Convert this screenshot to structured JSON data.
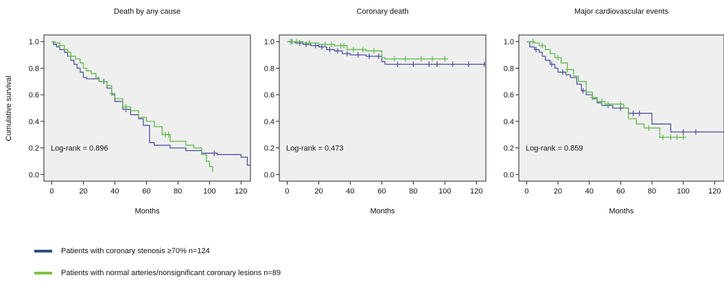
{
  "y_axis_label": "Cumulative survival",
  "colors": {
    "stenosis": "#4a4fa0",
    "normal": "#5cb946",
    "plot_bg": "#efefef"
  },
  "legend": [
    {
      "label": "Patients with coronary stenosis ≥70% n=124",
      "color": "#2b4f7e"
    },
    {
      "label": "Patients with normal arteries/nonsignificant coronary lesions n=89",
      "color": "#7cc242"
    }
  ],
  "chart_data": [
    {
      "type": "line",
      "step": true,
      "title": "Death by any cause",
      "xlabel": "Months",
      "ylabel": "Cumulative survival",
      "xlim": [
        -5,
        126
      ],
      "ylim": [
        -0.05,
        1.05
      ],
      "xticks": [
        0,
        20,
        40,
        60,
        80,
        100,
        120
      ],
      "yticks": [
        "0.0",
        "0.2",
        "0.4",
        "0.6",
        "0.8",
        "1.0"
      ],
      "annotation": "Log-rank = 0.896",
      "series": [
        {
          "color": "#4a4fa0",
          "x": [
            0,
            1,
            3,
            5,
            8,
            10,
            12,
            14,
            16,
            18,
            20,
            22,
            25,
            30,
            35,
            38,
            40,
            45,
            50,
            55,
            58,
            62,
            65,
            75,
            85,
            95,
            105,
            120,
            124,
            126
          ],
          "y": [
            1.0,
            0.98,
            0.96,
            0.94,
            0.92,
            0.89,
            0.86,
            0.83,
            0.8,
            0.77,
            0.73,
            0.72,
            0.72,
            0.7,
            0.65,
            0.6,
            0.55,
            0.49,
            0.45,
            0.42,
            0.37,
            0.24,
            0.22,
            0.2,
            0.18,
            0.16,
            0.15,
            0.13,
            0.07,
            0.07
          ],
          "censor_x": [
            33,
            47,
            103
          ]
        },
        {
          "color": "#5cb946",
          "x": [
            0,
            2,
            5,
            8,
            10,
            12,
            15,
            18,
            20,
            22,
            25,
            28,
            30,
            35,
            38,
            40,
            45,
            50,
            55,
            60,
            65,
            70,
            75,
            85,
            90,
            95,
            98,
            100,
            102
          ],
          "y": [
            1.0,
            0.99,
            0.97,
            0.94,
            0.92,
            0.89,
            0.87,
            0.84,
            0.8,
            0.78,
            0.76,
            0.73,
            0.7,
            0.67,
            0.61,
            0.57,
            0.51,
            0.48,
            0.43,
            0.4,
            0.36,
            0.3,
            0.25,
            0.22,
            0.2,
            0.15,
            0.1,
            0.06,
            0.02
          ],
          "censor_x": [
            5,
            12,
            38,
            47,
            72,
            74
          ]
        }
      ]
    },
    {
      "type": "line",
      "step": true,
      "title": "Coronary death",
      "xlabel": "Months",
      "ylabel": "",
      "xlim": [
        -5,
        126
      ],
      "ylim": [
        -0.05,
        1.05
      ],
      "xticks": [
        0,
        20,
        40,
        60,
        80,
        100,
        120
      ],
      "yticks": [
        "0.0",
        "0.2",
        "0.4",
        "0.6",
        "0.8",
        "1.0"
      ],
      "annotation": "Log-rank = 0.473",
      "series": [
        {
          "color": "#4a4fa0",
          "x": [
            0,
            5,
            10,
            15,
            20,
            25,
            30,
            35,
            40,
            50,
            60,
            62,
            126
          ],
          "y": [
            1.0,
            0.99,
            0.98,
            0.97,
            0.96,
            0.94,
            0.93,
            0.91,
            0.9,
            0.89,
            0.85,
            0.83,
            0.83
          ],
          "censor_x": [
            3,
            8,
            12,
            18,
            22,
            27,
            32,
            38,
            45,
            52,
            58,
            70,
            80,
            90,
            95,
            105,
            115,
            125
          ]
        },
        {
          "color": "#5cb946",
          "x": [
            0,
            10,
            20,
            30,
            38,
            50,
            60,
            62,
            102
          ],
          "y": [
            1.0,
            0.99,
            0.98,
            0.97,
            0.94,
            0.93,
            0.88,
            0.87,
            0.87
          ],
          "censor_x": [
            2,
            6,
            14,
            24,
            28,
            34,
            36,
            42,
            48,
            55,
            68,
            75,
            85,
            92,
            100
          ]
        }
      ]
    },
    {
      "type": "line",
      "step": true,
      "title": "Major cardiovascular events",
      "xlabel": "Months",
      "ylabel": "",
      "xlim": [
        -5,
        126
      ],
      "ylim": [
        -0.05,
        1.05
      ],
      "xticks": [
        0,
        20,
        40,
        60,
        80,
        100,
        120
      ],
      "yticks": [
        "0.0",
        "0.2",
        "0.4",
        "0.6",
        "0.8",
        "1.0"
      ],
      "annotation": "Log-rank = 0.859",
      "series": [
        {
          "color": "#4a4fa0",
          "x": [
            0,
            2,
            5,
            8,
            10,
            12,
            15,
            18,
            20,
            25,
            28,
            32,
            35,
            38,
            42,
            45,
            48,
            55,
            65,
            80,
            92,
            126
          ],
          "y": [
            1.0,
            0.96,
            0.94,
            0.92,
            0.89,
            0.86,
            0.83,
            0.8,
            0.77,
            0.75,
            0.73,
            0.68,
            0.63,
            0.6,
            0.57,
            0.54,
            0.52,
            0.5,
            0.46,
            0.38,
            0.32,
            0.32
          ],
          "censor_x": [
            6,
            16,
            23,
            36,
            52,
            60,
            68,
            72,
            100,
            108
          ]
        },
        {
          "color": "#5cb946",
          "x": [
            0,
            5,
            8,
            12,
            15,
            18,
            22,
            26,
            30,
            33,
            38,
            42,
            45,
            50,
            55,
            62,
            65,
            70,
            75,
            85,
            102
          ],
          "y": [
            1.0,
            0.99,
            0.97,
            0.94,
            0.91,
            0.88,
            0.84,
            0.79,
            0.74,
            0.7,
            0.62,
            0.58,
            0.55,
            0.53,
            0.53,
            0.5,
            0.42,
            0.38,
            0.35,
            0.28,
            0.28
          ],
          "censor_x": [
            4,
            10,
            20,
            26,
            42,
            48,
            52,
            60,
            78,
            87,
            92,
            96,
            100
          ]
        }
      ]
    }
  ]
}
